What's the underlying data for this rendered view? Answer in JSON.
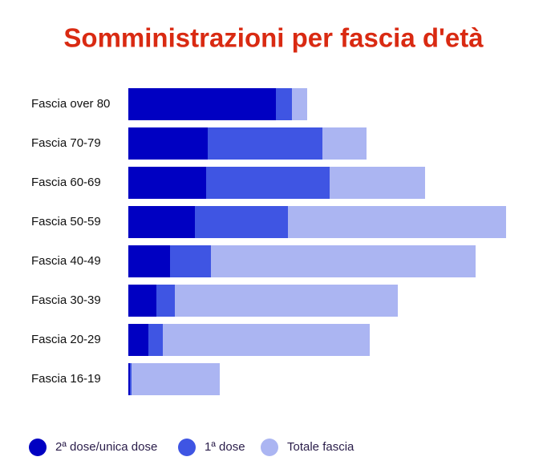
{
  "chart_data": {
    "type": "stacked-bar-horizontal",
    "title": "Somministrazioni per fascia d'età",
    "categories": [
      "Fascia over 80",
      "Fascia 70-79",
      "Fascia 60-69",
      "Fascia 50-59",
      "Fascia 40-49",
      "Fascia 30-39",
      "Fascia 20-29",
      "Fascia 16-19"
    ],
    "series": [
      {
        "name": "2ª dose/unica dose",
        "color": "#0000c2",
        "values": [
          184,
          99,
          97,
          83,
          52,
          35,
          25,
          2
        ]
      },
      {
        "name": "1ª dose",
        "color": "#3f55e3",
        "values": [
          20,
          143,
          154,
          116,
          51,
          23,
          18,
          2
        ]
      },
      {
        "name": "Totale fascia",
        "color": "#abb5f2",
        "values": [
          19,
          55,
          119,
          272,
          330,
          278,
          258,
          110
        ]
      }
    ],
    "xlim": [
      0,
      500
    ],
    "legend": "bottom"
  }
}
